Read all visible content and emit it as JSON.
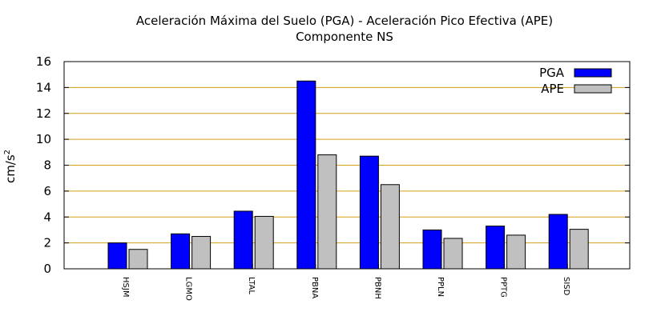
{
  "chart_data": {
    "type": "bar",
    "title": "Aceleración Máxima del Suelo (PGA) -  Aceleración Pico Efectiva (APE)",
    "subtitle": "Componente NS",
    "ylabel": "cm/s",
    "ylabel_superscript": "2",
    "xlabel": "",
    "ylim": [
      0,
      16
    ],
    "yticks": [
      0,
      2,
      4,
      6,
      8,
      10,
      12,
      14,
      16
    ],
    "grid": "horizontal",
    "legend_position": "top-right",
    "categories": [
      "HSJM",
      "LGMO",
      "LTAL",
      "PBNA",
      "PBNH",
      "PPLN",
      "PPTG",
      "SISD"
    ],
    "series": [
      {
        "name": "PGA",
        "color": "#0000ff",
        "values": [
          2.0,
          2.7,
          4.45,
          14.5,
          8.7,
          3.0,
          3.3,
          4.2
        ]
      },
      {
        "name": "APE",
        "color": "#c0c0c0",
        "values": [
          1.5,
          2.5,
          4.05,
          8.8,
          6.5,
          2.35,
          2.6,
          3.05
        ]
      }
    ],
    "gridline_color": "#d4a017"
  }
}
